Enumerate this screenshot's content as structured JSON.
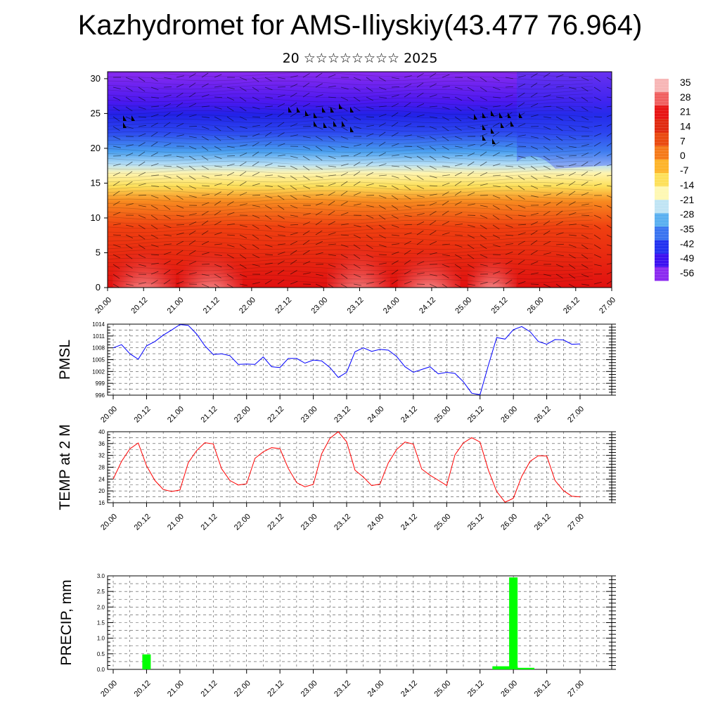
{
  "title": "Kazhydromet for AMS-Iliyskiy(43.477 76.964)",
  "subtitle": "20 ☆☆☆☆☆☆☆☆ 2025",
  "time_labels": [
    "20.00",
    "20.12",
    "21.00",
    "21.12",
    "22.00",
    "22.12",
    "23.00",
    "23.12",
    "24.00",
    "24.12",
    "25.00",
    "25.12",
    "26.00",
    "26.12",
    "27.00"
  ],
  "colors": {
    "pmsl_line": "#0000ff",
    "temp_line": "#ff0000",
    "precip_bar": "#00ff00"
  },
  "chart_data": [
    {
      "id": "upper-air",
      "type": "heatmap",
      "x_ticks": [
        "20.00",
        "20.12",
        "21.00",
        "21.12",
        "22.00",
        "22.12",
        "23.00",
        "23.12",
        "24.00",
        "24.12",
        "25.00",
        "25.12",
        "26.00",
        "26.12",
        "27.00"
      ],
      "y_ticks": [
        0,
        5,
        10,
        15,
        20,
        25,
        30
      ],
      "ylim": [
        0,
        31
      ],
      "colorbar": {
        "labels": [
          "35",
          "28",
          "21",
          "14",
          "7",
          "0",
          "-7",
          "-14",
          "-21",
          "-28",
          "-35",
          "-42",
          "-49",
          "-56"
        ],
        "colors": [
          "#f7b6b6",
          "#f06060",
          "#e81414",
          "#e02a10",
          "#ea4a10",
          "#f57a1a",
          "#fdb42a",
          "#fde05a",
          "#fef8b4",
          "#c0e4f4",
          "#5ab0f0",
          "#3a74f0",
          "#2232f0",
          "#3c10f0",
          "#8c2af0"
        ]
      },
      "description_levels": "temperature shading with wind barbs"
    },
    {
      "id": "pmsl",
      "type": "line",
      "ylabel": "PMSL",
      "y_ticks": [
        996,
        999,
        1002,
        1005,
        1008,
        1011,
        1014
      ],
      "ylim": [
        996,
        1014
      ],
      "x_ticks": [
        "20.00",
        "20.12",
        "21.00",
        "21.12",
        "22.00",
        "22.12",
        "23.00",
        "23.12",
        "24.00",
        "24.12",
        "25.00",
        "25.12",
        "26.00",
        "26.12",
        "27.00"
      ],
      "series": [
        {
          "values": [
            1008.0,
            1008.8,
            1006.5,
            1005.1,
            1008.5,
            1009.6,
            1011.2,
            1012.5,
            1013.9,
            1013.7,
            1011.5,
            1008.5,
            1006.3,
            1006.5,
            1006.0,
            1003.8,
            1003.9,
            1003.8,
            1005.7,
            1003.2,
            1003.0,
            1005.3,
            1005.3,
            1004.1,
            1004.9,
            1004.7,
            1003.0,
            1000.5,
            1001.8,
            1007.0,
            1008.0,
            1007.1,
            1007.6,
            1007.4,
            1005.8,
            1003.2,
            1001.8,
            1002.5,
            1003.2,
            1001.4,
            1001.8,
            1001.5,
            999.4,
            996.5,
            996.1,
            1003.6,
            1010.6,
            1010.2,
            1012.6,
            1013.4,
            1012.1,
            1009.6,
            1008.9,
            1010.1,
            1010.0,
            1008.9,
            1009.0
          ]
        }
      ]
    },
    {
      "id": "temp",
      "type": "line",
      "ylabel": "TEMP at 2 M",
      "y_ticks": [
        16,
        20,
        24,
        28,
        32,
        36,
        40
      ],
      "ylim": [
        16,
        40
      ],
      "x_ticks": [
        "20.00",
        "20.12",
        "21.00",
        "21.12",
        "22.00",
        "22.12",
        "23.00",
        "23.12",
        "24.00",
        "24.12",
        "25.00",
        "25.12",
        "26.00",
        "26.12",
        "27.00"
      ],
      "series": [
        {
          "values": [
            24.0,
            30.0,
            34.2,
            36.2,
            28.5,
            23.5,
            20.5,
            19.8,
            20.3,
            29.5,
            33.6,
            36.3,
            35.9,
            27.5,
            23.5,
            22.0,
            22.4,
            31.0,
            33.2,
            34.6,
            34.3,
            27.6,
            22.8,
            21.4,
            22.2,
            32.5,
            37.8,
            40.0,
            36.6,
            27.0,
            24.7,
            21.8,
            22.3,
            29.5,
            34.0,
            36.5,
            35.8,
            27.4,
            25.3,
            23.6,
            21.8,
            32.2,
            36.2,
            38.0,
            36.5,
            27.0,
            19.8,
            16.2,
            17.5,
            24.9,
            30.0,
            31.9,
            31.8,
            23.5,
            20.1,
            18.2,
            18.0
          ]
        }
      ]
    },
    {
      "id": "precip",
      "type": "bar",
      "ylabel": "PRECIP, mm",
      "y_ticks": [
        "0.0",
        "0.5",
        "1.0",
        "1.5",
        "2.0",
        "2.5",
        "3.0"
      ],
      "ylim": [
        0,
        3.0
      ],
      "x_ticks": [
        "20.00",
        "20.12",
        "21.00",
        "21.12",
        "22.00",
        "22.12",
        "23.00",
        "23.12",
        "24.00",
        "24.12",
        "25.00",
        "25.12",
        "26.00",
        "26.12",
        "27.00"
      ],
      "bars": [
        {
          "time_hours": 12,
          "value": 0.48
        },
        {
          "time_hours": 141,
          "value": 0.1
        },
        {
          "time_hours": 144,
          "value": 2.95
        },
        {
          "time_hours": 147,
          "value": 0.05
        }
      ]
    }
  ]
}
